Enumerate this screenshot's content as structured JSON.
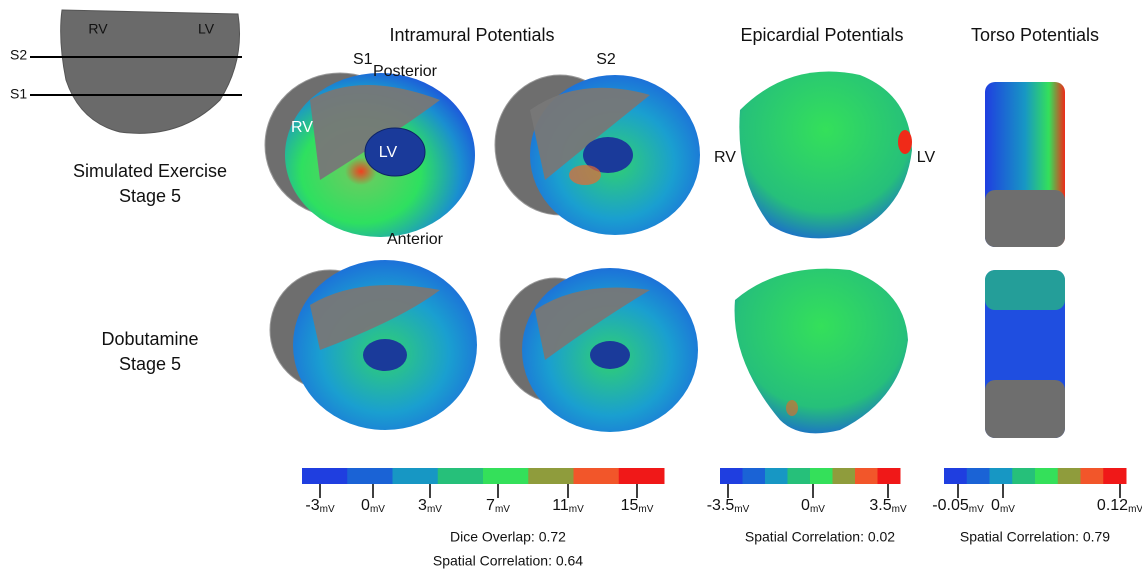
{
  "schematic": {
    "chambers": [
      "RV",
      "LV"
    ],
    "slices": [
      "S2",
      "S1"
    ]
  },
  "rows": [
    {
      "label": [
        "Simulated Exercise",
        "Stage 5"
      ]
    },
    {
      "label": [
        "Dobutamine",
        "Stage 5"
      ]
    }
  ],
  "columns": [
    {
      "title": "Intramural Potentials",
      "slices": [
        "S1",
        "S2"
      ],
      "orientation": [
        "Posterior",
        "Anterior"
      ],
      "chambers": [
        "RV",
        "LV"
      ],
      "colorbar": {
        "colors": [
          "#1f3ee0",
          "#1a63d6",
          "#1797c4",
          "#26c07a",
          "#34e05a",
          "#8f9c3c",
          "#f2562a",
          "#f01818"
        ],
        "ticks": [
          "-3",
          "0",
          "3",
          "7",
          "11",
          "15"
        ],
        "unit": "mV"
      },
      "stats": [
        "Dice Overlap: 0.72",
        "Spatial Correlation: 0.64"
      ]
    },
    {
      "title": "Epicardial Potentials",
      "chambers": [
        "RV",
        "LV"
      ],
      "colorbar": {
        "colors": [
          "#1f3ee0",
          "#1a63d6",
          "#1797c4",
          "#26c07a",
          "#34e05a",
          "#8f9c3c",
          "#f2562a",
          "#f01818"
        ],
        "ticks": [
          "-3.5",
          "0",
          "3.5"
        ],
        "unit": "mV"
      },
      "stats": [
        "Spatial Correlation: 0.02"
      ]
    },
    {
      "title": "Torso Potentials",
      "colorbar": {
        "colors": [
          "#1f3ee0",
          "#1a63d6",
          "#1797c4",
          "#26c07a",
          "#34e05a",
          "#8f9c3c",
          "#f2562a",
          "#f01818"
        ],
        "ticks": [
          "-0.05",
          "0",
          "0.12"
        ],
        "unit": "mV"
      },
      "stats": [
        "Spatial Correlation: 0.79"
      ]
    }
  ]
}
